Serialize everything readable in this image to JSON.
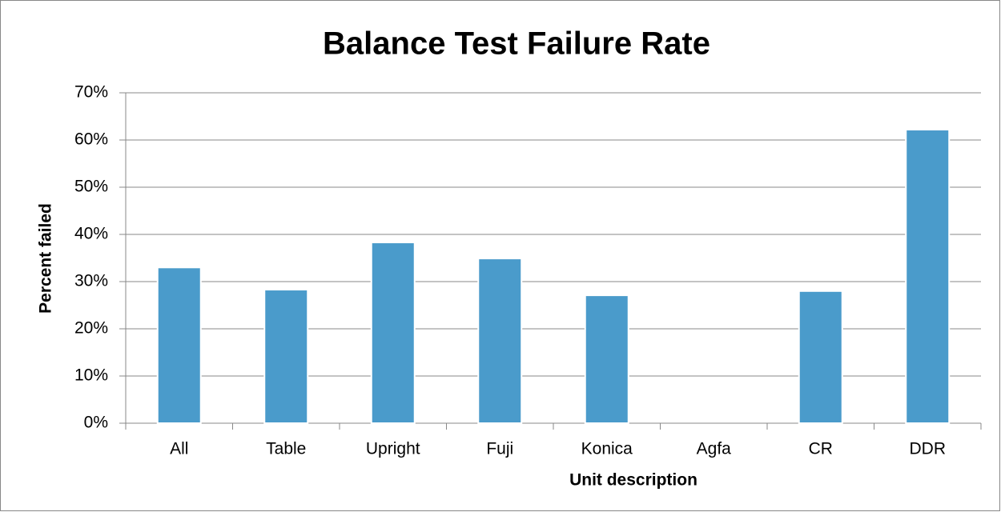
{
  "chart_data": {
    "type": "bar",
    "title": "Balance Test Failure Rate",
    "x_label": "Unit description",
    "y_label": "Percent failed",
    "categories": [
      "All",
      "Table",
      "Upright",
      "Fuji",
      "Konica",
      "Agfa",
      "CR",
      "DDR"
    ],
    "values": [
      33.0,
      28.3,
      38.3,
      34.9,
      27.1,
      0,
      28.0,
      62.2
    ],
    "color": "#4a9bcb",
    "ylim": [
      0,
      70
    ],
    "yticks": [
      {
        "value": 0,
        "label": "0%"
      },
      {
        "value": 10,
        "label": "10%"
      },
      {
        "value": 20,
        "label": "20%"
      },
      {
        "value": 30,
        "label": "30%"
      },
      {
        "value": 40,
        "label": "40%"
      },
      {
        "value": 50,
        "label": "50%"
      },
      {
        "value": 60,
        "label": "60%"
      },
      {
        "value": 70,
        "label": "70%"
      }
    ],
    "grid": true
  }
}
